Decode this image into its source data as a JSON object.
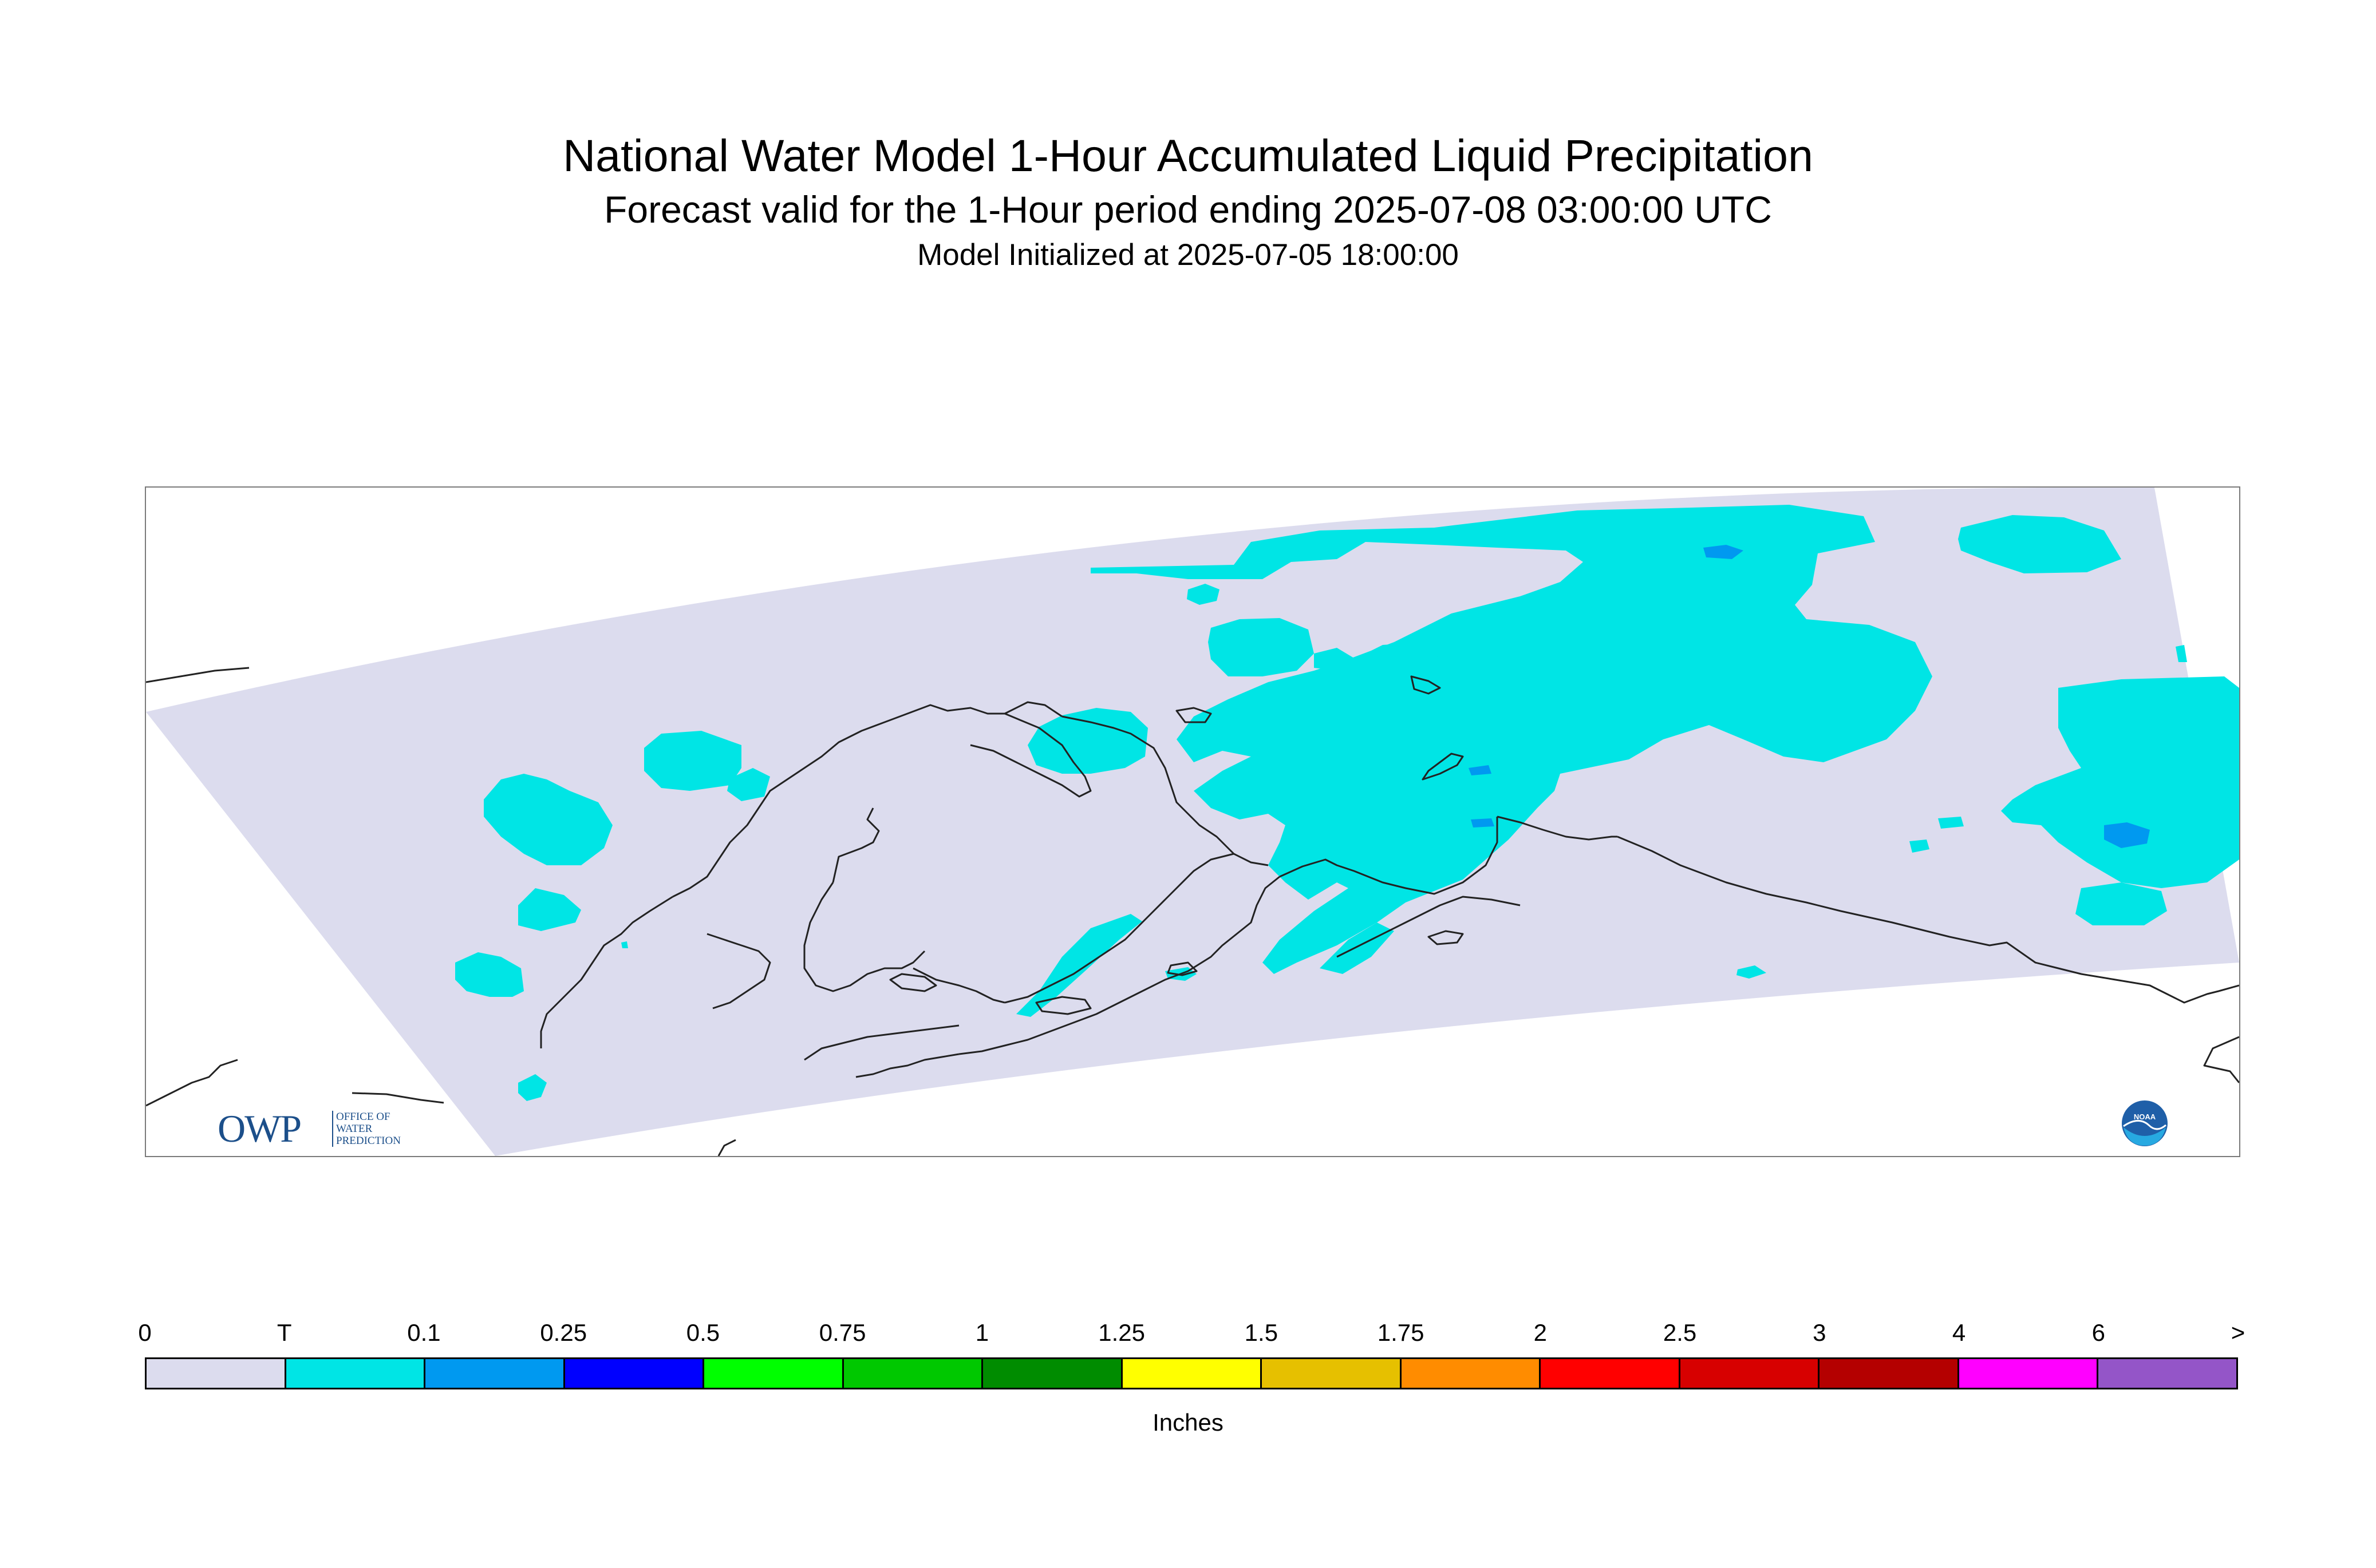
{
  "header": {
    "title": "National Water Model 1-Hour Accumulated Liquid Precipitation",
    "subtitle": "Forecast valid for the 1-Hour period ending 2025-07-08 03:00:00 UTC",
    "init": "Model Initialized at 2025-07-05 18:00:00"
  },
  "map": {
    "domain_fill": "#dcdcee",
    "precip_trace_color": "#00e5e5",
    "precip_01_color": "#0099f0",
    "coast_color": "#222222"
  },
  "logos": {
    "owp": {
      "text": "OWP",
      "subtext": "OFFICE OF\nWATER\nPREDICTION"
    },
    "noaa": {
      "text": "NOAA"
    }
  },
  "legend": {
    "labels": [
      "0",
      "T",
      "0.1",
      "0.25",
      "0.5",
      "0.75",
      "1",
      "1.25",
      "1.5",
      "1.75",
      "2",
      "2.5",
      "3",
      "4",
      "6",
      ">"
    ],
    "colors": [
      "#dcdcee",
      "#00e5e5",
      "#0099f0",
      "#0000ff",
      "#00ff00",
      "#00c800",
      "#008c00",
      "#ffff00",
      "#e6c000",
      "#ff8c00",
      "#ff0000",
      "#d70000",
      "#b40000",
      "#ff00ff",
      "#9455c8"
    ],
    "unit": "Inches"
  }
}
